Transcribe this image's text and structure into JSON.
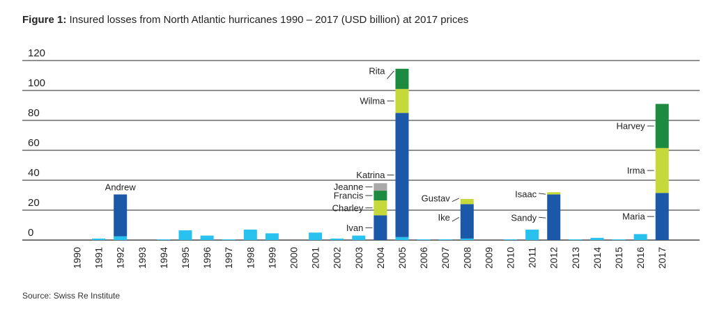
{
  "figure": {
    "title_lead": "Figure 1:",
    "title_text": "Insured losses from North Atlantic hurricanes 1990 – 2017 (USD billion) at 2017 prices",
    "source": "Source: Swiss Re Institute"
  },
  "colors": {
    "other": "#29c2ee",
    "named_primary": "#1b58a8",
    "named_secondary": "#c6d93b",
    "named_tertiary": "#1c8a3f",
    "named_quaternary": "#a9a9a9",
    "grid": "#222222"
  },
  "chart_data": {
    "type": "bar",
    "stacked": true,
    "title": "Insured losses from North Atlantic hurricanes 1990 – 2017 (USD billion) at 2017 prices",
    "xlabel": "",
    "ylabel": "",
    "ylim": [
      0,
      120
    ],
    "yticks": [
      0,
      20,
      40,
      60,
      80,
      100,
      120
    ],
    "grid": true,
    "categories": [
      "1990",
      "1991",
      "1992",
      "1993",
      "1994",
      "1995",
      "1996",
      "1997",
      "1998",
      "1999",
      "2000",
      "2001",
      "2002",
      "2003",
      "2004",
      "2005",
      "2006",
      "2007",
      "2008",
      "2009",
      "2010",
      "2011",
      "2012",
      "2013",
      "2014",
      "2015",
      "2016",
      "2017"
    ],
    "bars": [
      {
        "year": "1990",
        "segments": []
      },
      {
        "year": "1991",
        "segments": [
          {
            "value": 1.0,
            "color": "other"
          }
        ]
      },
      {
        "year": "1992",
        "segments": [
          {
            "value": 2.5,
            "color": "other"
          },
          {
            "value": 28.0,
            "color": "named_primary",
            "label": "Andrew"
          }
        ]
      },
      {
        "year": "1993",
        "segments": []
      },
      {
        "year": "1994",
        "segments": [
          {
            "value": 0.3,
            "color": "other"
          }
        ]
      },
      {
        "year": "1995",
        "segments": [
          {
            "value": 6.5,
            "color": "other"
          }
        ]
      },
      {
        "year": "1996",
        "segments": [
          {
            "value": 3.0,
            "color": "other"
          }
        ]
      },
      {
        "year": "1997",
        "segments": [
          {
            "value": 0.2,
            "color": "other"
          }
        ]
      },
      {
        "year": "1998",
        "segments": [
          {
            "value": 7.0,
            "color": "other"
          }
        ]
      },
      {
        "year": "1999",
        "segments": [
          {
            "value": 4.5,
            "color": "other"
          }
        ]
      },
      {
        "year": "2000",
        "segments": []
      },
      {
        "year": "2001",
        "segments": [
          {
            "value": 5.0,
            "color": "other"
          }
        ]
      },
      {
        "year": "2002",
        "segments": [
          {
            "value": 1.0,
            "color": "other"
          }
        ]
      },
      {
        "year": "2003",
        "segments": [
          {
            "value": 3.0,
            "color": "other"
          }
        ]
      },
      {
        "year": "2004",
        "segments": [
          {
            "value": 16.5,
            "color": "named_primary",
            "label": "Ivan"
          },
          {
            "value": 10.0,
            "color": "named_secondary",
            "label": "Charley"
          },
          {
            "value": 6.5,
            "color": "named_tertiary",
            "label": "Francis"
          },
          {
            "value": 5.0,
            "color": "named_quaternary",
            "label": "Jeanne"
          }
        ]
      },
      {
        "year": "2005",
        "segments": [
          {
            "value": 2.0,
            "color": "other"
          },
          {
            "value": 83.0,
            "color": "named_primary",
            "label": "Katrina"
          },
          {
            "value": 16.0,
            "color": "named_secondary",
            "label": "Wilma"
          },
          {
            "value": 13.5,
            "color": "named_tertiary",
            "label": "Rita"
          }
        ]
      },
      {
        "year": "2006",
        "segments": [
          {
            "value": 0.3,
            "color": "other"
          }
        ]
      },
      {
        "year": "2007",
        "segments": [
          {
            "value": 0.5,
            "color": "other"
          }
        ]
      },
      {
        "year": "2008",
        "segments": [
          {
            "value": 1.0,
            "color": "other"
          },
          {
            "value": 23.0,
            "color": "named_primary",
            "label": "Ike"
          },
          {
            "value": 3.5,
            "color": "named_secondary",
            "label": "Gustav"
          }
        ]
      },
      {
        "year": "2009",
        "segments": []
      },
      {
        "year": "2010",
        "segments": [
          {
            "value": 0.5,
            "color": "other"
          }
        ]
      },
      {
        "year": "2011",
        "segments": [
          {
            "value": 7.0,
            "color": "other"
          }
        ]
      },
      {
        "year": "2012",
        "segments": [
          {
            "value": 30.5,
            "color": "named_primary",
            "label": "Sandy"
          },
          {
            "value": 1.5,
            "color": "named_secondary",
            "label": "Isaac"
          }
        ]
      },
      {
        "year": "2013",
        "segments": [
          {
            "value": 0.2,
            "color": "other"
          }
        ]
      },
      {
        "year": "2014",
        "segments": [
          {
            "value": 1.5,
            "color": "other"
          }
        ]
      },
      {
        "year": "2015",
        "segments": [
          {
            "value": 0.3,
            "color": "other"
          }
        ]
      },
      {
        "year": "2016",
        "segments": [
          {
            "value": 4.0,
            "color": "other"
          }
        ]
      },
      {
        "year": "2017",
        "segments": [
          {
            "value": 31.5,
            "color": "named_primary",
            "label": "Maria"
          },
          {
            "value": 30.0,
            "color": "named_secondary",
            "label": "Irma"
          },
          {
            "value": 29.5,
            "color": "named_tertiary",
            "label": "Harvey"
          }
        ]
      }
    ]
  }
}
